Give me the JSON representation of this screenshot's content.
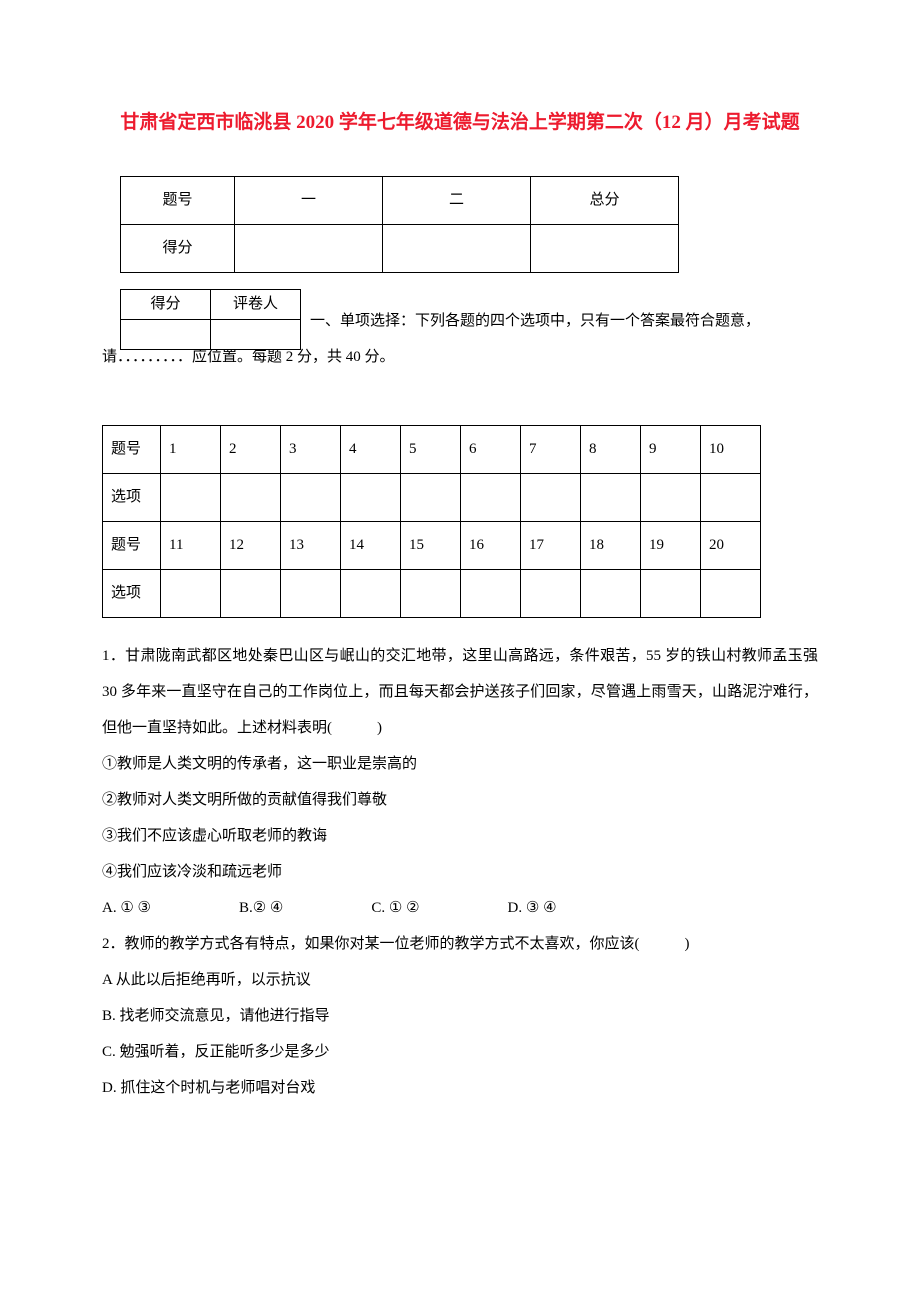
{
  "title": "甘肃省定西市临洮县 2020 学年七年级道德与法治上学期第二次（12 月）月考试题",
  "scoreTable": {
    "row1": {
      "c1": "题号",
      "c2": "一",
      "c3": "二",
      "c4": "总分"
    },
    "row2": {
      "c1": "得分",
      "c2": "",
      "c3": "",
      "c4": ""
    }
  },
  "graderTable": {
    "h1": "得分",
    "h2": "评卷人"
  },
  "sectionIntro": {
    "line1": "一、单项选择：下列各题的四个选项中，只有一个答案最符合题意，",
    "line2pre": "请",
    "line2dashed": "．．．．．．．．．",
    "line2post": "应位置。每题 2 分，共 40 分。"
  },
  "answerTable": {
    "headerRow1": "题号",
    "headerRow2": "选项",
    "nums1": [
      "1",
      "2",
      "3",
      "4",
      "5",
      "6",
      "7",
      "8",
      "9",
      "10"
    ],
    "nums2": [
      "11",
      "12",
      "13",
      "14",
      "15",
      "16",
      "17",
      "18",
      "19",
      "20"
    ]
  },
  "q1": {
    "text": "1．甘肃陇南武都区地处秦巴山区与岷山的交汇地带，这里山高路远，条件艰苦，55 岁的铁山村教师孟玉强 30 多年来一直坚守在自己的工作岗位上，而且每天都会护送孩子们回家，尽管遇上雨雪天，山路泥泞难行，但他一直坚持如此。上述材料表明(　　　)",
    "s1": "①教师是人类文明的传承者，这一职业是崇高的",
    "s2": "②教师对人类文明所做的贡献值得我们尊敬",
    "s3": "③我们不应该虚心听取老师的教诲",
    "s4": "④我们应该冷淡和疏远老师",
    "a": "A. ① ③",
    "b": "B.② ④",
    "c": "C. ① ②",
    "d": "D. ③ ④"
  },
  "q2": {
    "text": "2．教师的教学方式各有特点，如果你对某一位老师的教学方式不太喜欢，你应该(　　　)",
    "a": "A 从此以后拒绝再听，以示抗议",
    "b": "B. 找老师交流意见，请他进行指导",
    "c": "C. 勉强听着，反正能听多少是多少",
    "d": "D. 抓住这个时机与老师唱对台戏"
  }
}
